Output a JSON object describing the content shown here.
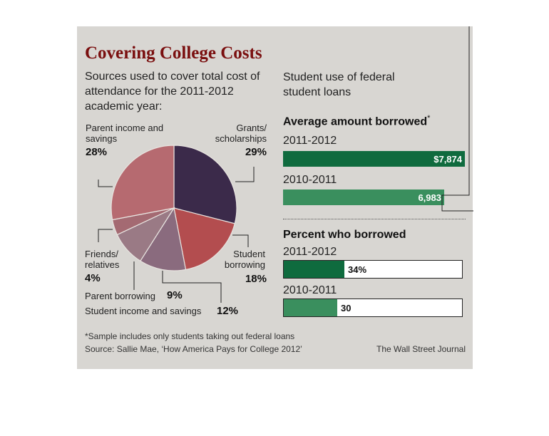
{
  "title": "Covering College Costs",
  "subtitle": "Sources used to cover total cost of attendance for the 2011-2012 academic year:",
  "right_header": "Student use of federal student loans",
  "pie_slice_labels": {
    "parent_income": {
      "name": "Parent income and savings",
      "pct": "28%"
    },
    "grants": {
      "name": "Grants/ scholarships",
      "pct": "29%"
    },
    "student_borrowing": {
      "name": "Student borrowing",
      "pct": "18%"
    },
    "student_income": {
      "name": "Student income and savings",
      "pct": "12%"
    },
    "parent_borrowing": {
      "name": "Parent borrowing",
      "pct": "9%"
    },
    "friends": {
      "name": "Friends/ relatives",
      "pct": "4%"
    }
  },
  "avg_section": {
    "heading": "Average amount borrowed",
    "asterisk": "*"
  },
  "pct_section": {
    "heading": "Percent who borrowed"
  },
  "footnote": "*Sample includes only students taking out federal loans",
  "source": "Source: Sallie Mae, ‘How America Pays for College 2012’",
  "credit": "The Wall Street Journal",
  "colors": {
    "title": "#7a0f0f",
    "bar_dark": "#0f6b3e",
    "bar_light": "#3a8f5e",
    "pie_grants": "#3b2a4a",
    "pie_student_borrowing": "#b34d4f",
    "pie_student_income": "#8a6b7e",
    "pie_parent_borrowing": "#9a7a85",
    "pie_friends": "#a46a72",
    "pie_parent_income": "#b66a70"
  },
  "chart_data": [
    {
      "type": "pie",
      "title": "Covering College Costs",
      "subtitle": "Sources used to cover total cost of attendance for the 2011-2012 academic year:",
      "slices": [
        {
          "label": "Grants/ scholarships",
          "value": 29
        },
        {
          "label": "Student borrowing",
          "value": 18
        },
        {
          "label": "Student income and savings",
          "value": 12
        },
        {
          "label": "Parent borrowing",
          "value": 9
        },
        {
          "label": "Friends/ relatives",
          "value": 4
        },
        {
          "label": "Parent income and savings",
          "value": 28
        }
      ]
    },
    {
      "type": "bar",
      "title": "Average amount borrowed",
      "categories": [
        "2011-2012",
        "2010-2011"
      ],
      "values": [
        7874,
        6983
      ],
      "value_labels": [
        "$7,874",
        "6,983"
      ]
    },
    {
      "type": "bar",
      "title": "Percent who borrowed",
      "categories": [
        "2011-2012",
        "2010-2011"
      ],
      "values": [
        34,
        30
      ],
      "value_labels": [
        "34%",
        "30"
      ],
      "xlim": [
        0,
        100
      ]
    }
  ]
}
